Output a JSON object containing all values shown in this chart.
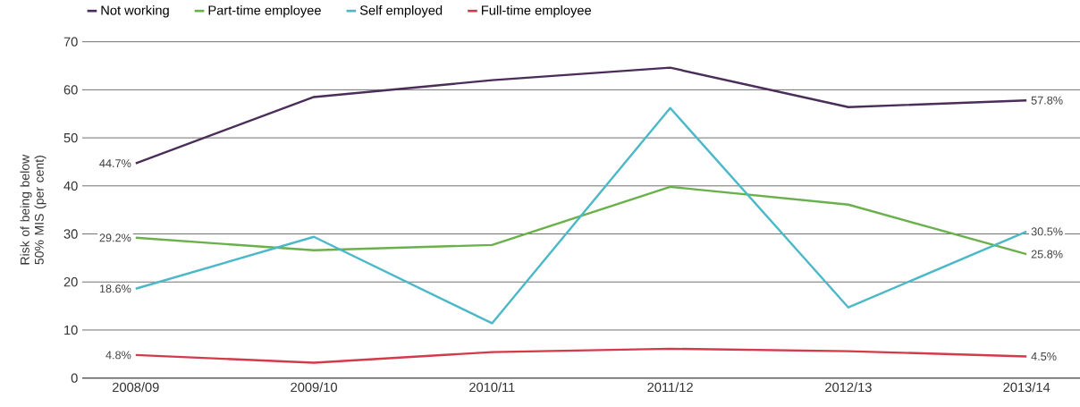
{
  "chart_data": {
    "type": "line",
    "ylabel": "Risk of being below 50% MIS (per cent)",
    "categories": [
      "2008/09",
      "2009/10",
      "2010/11",
      "2011/12",
      "2012/13",
      "2013/14"
    ],
    "series": [
      {
        "name": "Not working",
        "color": "#4b2d5a",
        "values": [
          44.7,
          58.5,
          62.0,
          64.6,
          56.4,
          57.8
        ],
        "value_labels": [
          "44.7%",
          null,
          null,
          null,
          null,
          "57.8%"
        ]
      },
      {
        "name": "Part-time employee",
        "color": "#6ab04c",
        "values": [
          29.2,
          26.6,
          27.7,
          39.8,
          36.1,
          25.8
        ],
        "value_labels": [
          "29.2%",
          null,
          null,
          null,
          null,
          "25.8%"
        ]
      },
      {
        "name": "Self employed",
        "color": "#4bb8c8",
        "values": [
          18.6,
          29.4,
          11.4,
          56.2,
          14.7,
          30.5
        ],
        "value_labels": [
          "18.6%",
          null,
          null,
          null,
          null,
          "30.5%"
        ]
      },
      {
        "name": "Full-time employee",
        "color": "#d43a4a",
        "values": [
          4.8,
          3.2,
          5.4,
          6.1,
          5.6,
          4.5
        ],
        "value_labels": [
          "4.8%",
          null,
          null,
          null,
          null,
          "4.5%"
        ]
      }
    ],
    "ylim": [
      0,
      70
    ],
    "yticks": [
      0,
      10,
      20,
      30,
      40,
      50,
      60,
      70
    ],
    "grid": "y",
    "legend": "top left",
    "marker": "none",
    "line_style": "solid"
  }
}
